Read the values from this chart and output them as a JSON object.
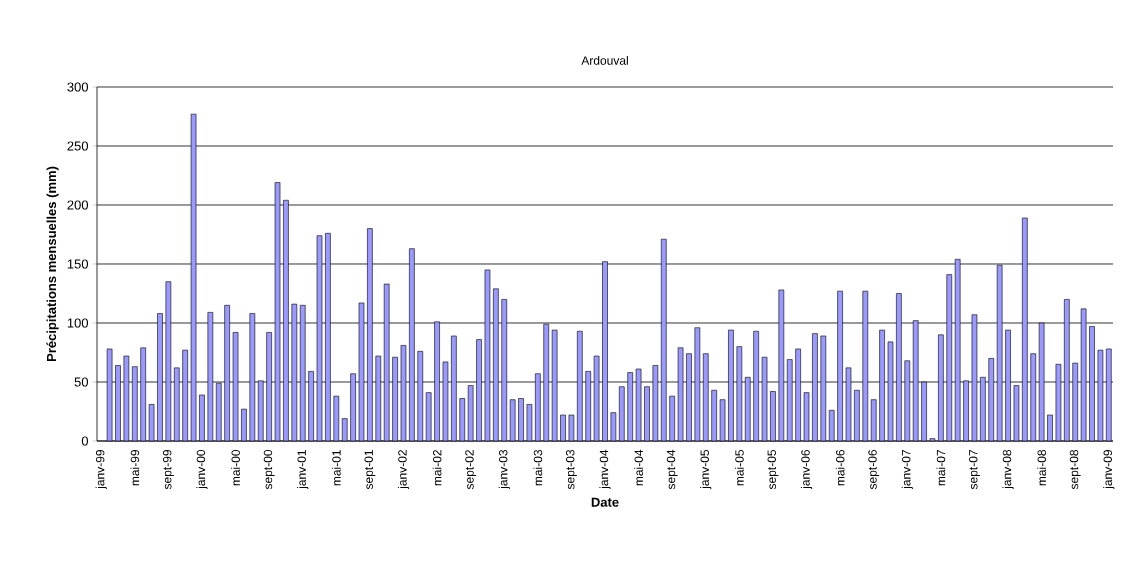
{
  "chart_data": {
    "type": "bar",
    "title": "Ardouval",
    "xlabel": "Date",
    "ylabel": "Précipitations mensuelles (mm)",
    "categories": [
      "janv-99",
      null,
      null,
      null,
      "mai-99",
      null,
      null,
      null,
      "sept-99",
      null,
      null,
      null,
      "janv-00",
      null,
      null,
      null,
      "mai-00",
      null,
      null,
      null,
      "sept-00",
      null,
      null,
      null,
      "janv-01",
      null,
      null,
      null,
      "mai-01",
      null,
      null,
      null,
      "sept-01",
      null,
      null,
      null,
      "janv-02",
      null,
      null,
      null,
      "mai-02",
      null,
      null,
      null,
      "sept-02",
      null,
      null,
      null,
      "janv-03",
      null,
      null,
      null,
      "mai-03",
      null,
      null,
      null,
      "sept-03",
      null,
      null,
      null,
      "janv-04",
      null,
      null,
      null,
      "mai-04",
      null,
      null,
      null,
      "sept-04",
      null,
      null,
      null,
      "janv-05",
      null,
      null,
      null,
      "mai-05",
      null,
      null,
      null,
      "sept-05",
      null,
      null,
      null,
      "janv-06",
      null,
      null,
      null,
      "mai-06",
      null,
      null,
      null,
      "sept-06",
      null,
      null,
      null,
      "janv-07",
      null,
      null,
      null,
      "mai-07",
      null,
      null,
      null,
      "sept-07",
      null,
      null,
      null,
      "janv-08",
      null,
      null,
      null,
      "mai-08",
      null,
      null,
      null,
      "sept-08",
      null,
      null,
      null,
      "janv-09"
    ],
    "values": [
      null,
      78,
      64,
      72,
      63,
      79,
      31,
      108,
      135,
      62,
      77,
      277,
      39,
      109,
      49,
      115,
      92,
      27,
      108,
      51,
      92,
      219,
      204,
      116,
      115,
      59,
      174,
      176,
      38,
      19,
      57,
      117,
      180,
      72,
      133,
      71,
      81,
      163,
      76,
      41,
      101,
      67,
      89,
      36,
      47,
      86,
      145,
      129,
      120,
      35,
      36,
      31,
      57,
      99,
      94,
      22,
      22,
      93,
      59,
      72,
      152,
      24,
      46,
      58,
      61,
      46,
      64,
      171,
      38,
      79,
      74,
      96,
      74,
      43,
      35,
      94,
      80,
      54,
      93,
      71,
      42,
      128,
      69,
      78,
      41,
      91,
      89,
      26,
      127,
      62,
      43,
      127,
      35,
      94,
      84,
      125,
      68,
      102,
      50,
      2,
      90,
      141,
      154,
      51,
      107,
      54,
      70,
      149,
      94,
      47,
      189,
      74,
      100,
      22,
      65,
      120,
      66,
      112,
      97,
      77,
      78
    ],
    "color": "#9999ff",
    "ylim": [
      0,
      300
    ],
    "yticks": [
      0,
      50,
      100,
      150,
      200,
      250,
      300
    ],
    "grid": "y"
  }
}
